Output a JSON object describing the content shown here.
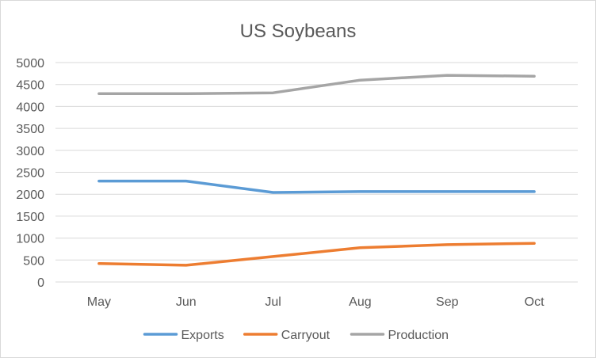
{
  "chart_data": {
    "type": "line",
    "title": "US Soybeans",
    "xlabel": "",
    "ylabel": "",
    "categories": [
      "May",
      "Jun",
      "Jul",
      "Aug",
      "Sep",
      "Oct"
    ],
    "ylim": [
      0,
      5000
    ],
    "yticks": [
      0,
      500,
      1000,
      1500,
      2000,
      2500,
      3000,
      3500,
      4000,
      4500,
      5000
    ],
    "grid": true,
    "legend_position": "bottom",
    "series": [
      {
        "name": "Exports",
        "color": "#5b9bd5",
        "values": [
          2300,
          2300,
          2040,
          2060,
          2060,
          2060
        ]
      },
      {
        "name": "Carryout",
        "color": "#ed7d31",
        "values": [
          420,
          380,
          580,
          780,
          850,
          880
        ]
      },
      {
        "name": "Production",
        "color": "#a5a5a5",
        "values": [
          4290,
          4290,
          4310,
          4600,
          4710,
          4690
        ]
      }
    ]
  }
}
